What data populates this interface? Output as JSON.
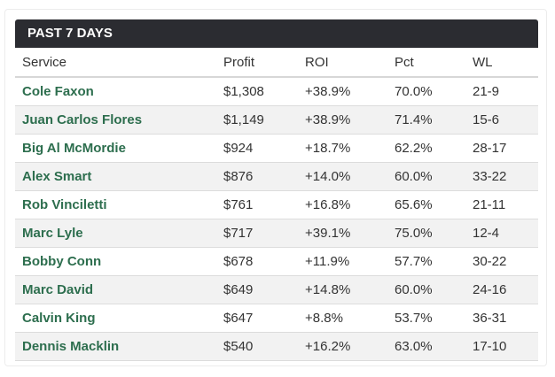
{
  "panel": {
    "title": "PAST 7 DAYS",
    "columns": {
      "service": "Service",
      "profit": "Profit",
      "roi": "ROI",
      "pct": "Pct",
      "wl": "WL"
    },
    "rows": [
      {
        "service": "Cole Faxon",
        "profit": "$1,308",
        "roi": "+38.9%",
        "pct": "70.0%",
        "wl": "21-9"
      },
      {
        "service": "Juan Carlos Flores",
        "profit": "$1,149",
        "roi": "+38.9%",
        "pct": "71.4%",
        "wl": "15-6"
      },
      {
        "service": "Big Al McMordie",
        "profit": "$924",
        "roi": "+18.7%",
        "pct": "62.2%",
        "wl": "28-17"
      },
      {
        "service": "Alex Smart",
        "profit": "$876",
        "roi": "+14.0%",
        "pct": "60.0%",
        "wl": "33-22"
      },
      {
        "service": "Rob Vinciletti",
        "profit": "$761",
        "roi": "+16.8%",
        "pct": "65.6%",
        "wl": "21-11"
      },
      {
        "service": "Marc Lyle",
        "profit": "$717",
        "roi": "+39.1%",
        "pct": "75.0%",
        "wl": "12-4"
      },
      {
        "service": "Bobby Conn",
        "profit": "$678",
        "roi": "+11.9%",
        "pct": "57.7%",
        "wl": "30-22"
      },
      {
        "service": "Marc David",
        "profit": "$649",
        "roi": "+14.8%",
        "pct": "60.0%",
        "wl": "24-16"
      },
      {
        "service": "Calvin King",
        "profit": "$647",
        "roi": "+8.8%",
        "pct": "53.7%",
        "wl": "36-31"
      },
      {
        "service": "Dennis Macklin",
        "profit": "$540",
        "roi": "+16.2%",
        "pct": "63.0%",
        "wl": "17-10"
      }
    ]
  },
  "colors": {
    "header_bg": "#2b2c31",
    "service_link": "#2d6e4e",
    "stripe": "#f2f2f2"
  }
}
